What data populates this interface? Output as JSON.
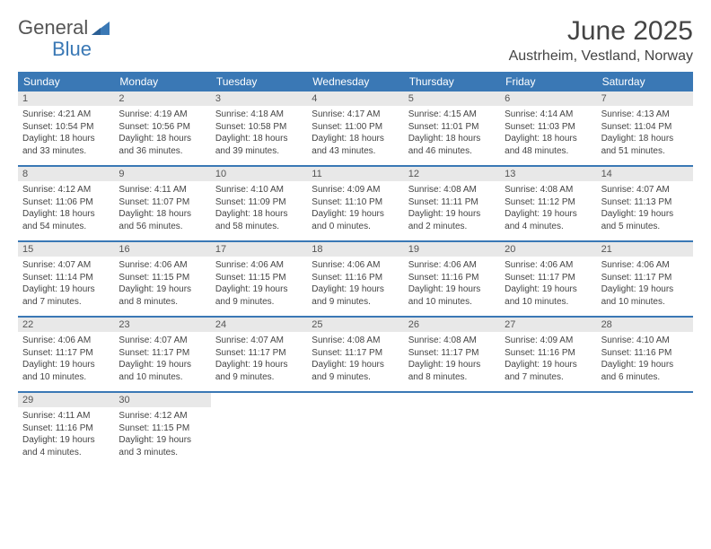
{
  "brand": {
    "part1": "General",
    "part2": "Blue"
  },
  "header": {
    "month_title": "June 2025",
    "location": "Austrheim, Vestland, Norway"
  },
  "style": {
    "accent_color": "#3a78b5",
    "daynum_bg": "#e8e8e8",
    "text_color": "#444444",
    "background": "#ffffff",
    "title_fontsize": 30,
    "location_fontsize": 16,
    "weekday_fontsize": 12,
    "body_fontsize": 10
  },
  "calendar": {
    "type": "table",
    "columns": [
      "Sunday",
      "Monday",
      "Tuesday",
      "Wednesday",
      "Thursday",
      "Friday",
      "Saturday"
    ],
    "weeks": [
      [
        {
          "n": "1",
          "sr": "Sunrise: 4:21 AM",
          "ss": "Sunset: 10:54 PM",
          "d1": "Daylight: 18 hours",
          "d2": "and 33 minutes."
        },
        {
          "n": "2",
          "sr": "Sunrise: 4:19 AM",
          "ss": "Sunset: 10:56 PM",
          "d1": "Daylight: 18 hours",
          "d2": "and 36 minutes."
        },
        {
          "n": "3",
          "sr": "Sunrise: 4:18 AM",
          "ss": "Sunset: 10:58 PM",
          "d1": "Daylight: 18 hours",
          "d2": "and 39 minutes."
        },
        {
          "n": "4",
          "sr": "Sunrise: 4:17 AM",
          "ss": "Sunset: 11:00 PM",
          "d1": "Daylight: 18 hours",
          "d2": "and 43 minutes."
        },
        {
          "n": "5",
          "sr": "Sunrise: 4:15 AM",
          "ss": "Sunset: 11:01 PM",
          "d1": "Daylight: 18 hours",
          "d2": "and 46 minutes."
        },
        {
          "n": "6",
          "sr": "Sunrise: 4:14 AM",
          "ss": "Sunset: 11:03 PM",
          "d1": "Daylight: 18 hours",
          "d2": "and 48 minutes."
        },
        {
          "n": "7",
          "sr": "Sunrise: 4:13 AM",
          "ss": "Sunset: 11:04 PM",
          "d1": "Daylight: 18 hours",
          "d2": "and 51 minutes."
        }
      ],
      [
        {
          "n": "8",
          "sr": "Sunrise: 4:12 AM",
          "ss": "Sunset: 11:06 PM",
          "d1": "Daylight: 18 hours",
          "d2": "and 54 minutes."
        },
        {
          "n": "9",
          "sr": "Sunrise: 4:11 AM",
          "ss": "Sunset: 11:07 PM",
          "d1": "Daylight: 18 hours",
          "d2": "and 56 minutes."
        },
        {
          "n": "10",
          "sr": "Sunrise: 4:10 AM",
          "ss": "Sunset: 11:09 PM",
          "d1": "Daylight: 18 hours",
          "d2": "and 58 minutes."
        },
        {
          "n": "11",
          "sr": "Sunrise: 4:09 AM",
          "ss": "Sunset: 11:10 PM",
          "d1": "Daylight: 19 hours",
          "d2": "and 0 minutes."
        },
        {
          "n": "12",
          "sr": "Sunrise: 4:08 AM",
          "ss": "Sunset: 11:11 PM",
          "d1": "Daylight: 19 hours",
          "d2": "and 2 minutes."
        },
        {
          "n": "13",
          "sr": "Sunrise: 4:08 AM",
          "ss": "Sunset: 11:12 PM",
          "d1": "Daylight: 19 hours",
          "d2": "and 4 minutes."
        },
        {
          "n": "14",
          "sr": "Sunrise: 4:07 AM",
          "ss": "Sunset: 11:13 PM",
          "d1": "Daylight: 19 hours",
          "d2": "and 5 minutes."
        }
      ],
      [
        {
          "n": "15",
          "sr": "Sunrise: 4:07 AM",
          "ss": "Sunset: 11:14 PM",
          "d1": "Daylight: 19 hours",
          "d2": "and 7 minutes."
        },
        {
          "n": "16",
          "sr": "Sunrise: 4:06 AM",
          "ss": "Sunset: 11:15 PM",
          "d1": "Daylight: 19 hours",
          "d2": "and 8 minutes."
        },
        {
          "n": "17",
          "sr": "Sunrise: 4:06 AM",
          "ss": "Sunset: 11:15 PM",
          "d1": "Daylight: 19 hours",
          "d2": "and 9 minutes."
        },
        {
          "n": "18",
          "sr": "Sunrise: 4:06 AM",
          "ss": "Sunset: 11:16 PM",
          "d1": "Daylight: 19 hours",
          "d2": "and 9 minutes."
        },
        {
          "n": "19",
          "sr": "Sunrise: 4:06 AM",
          "ss": "Sunset: 11:16 PM",
          "d1": "Daylight: 19 hours",
          "d2": "and 10 minutes."
        },
        {
          "n": "20",
          "sr": "Sunrise: 4:06 AM",
          "ss": "Sunset: 11:17 PM",
          "d1": "Daylight: 19 hours",
          "d2": "and 10 minutes."
        },
        {
          "n": "21",
          "sr": "Sunrise: 4:06 AM",
          "ss": "Sunset: 11:17 PM",
          "d1": "Daylight: 19 hours",
          "d2": "and 10 minutes."
        }
      ],
      [
        {
          "n": "22",
          "sr": "Sunrise: 4:06 AM",
          "ss": "Sunset: 11:17 PM",
          "d1": "Daylight: 19 hours",
          "d2": "and 10 minutes."
        },
        {
          "n": "23",
          "sr": "Sunrise: 4:07 AM",
          "ss": "Sunset: 11:17 PM",
          "d1": "Daylight: 19 hours",
          "d2": "and 10 minutes."
        },
        {
          "n": "24",
          "sr": "Sunrise: 4:07 AM",
          "ss": "Sunset: 11:17 PM",
          "d1": "Daylight: 19 hours",
          "d2": "and 9 minutes."
        },
        {
          "n": "25",
          "sr": "Sunrise: 4:08 AM",
          "ss": "Sunset: 11:17 PM",
          "d1": "Daylight: 19 hours",
          "d2": "and 9 minutes."
        },
        {
          "n": "26",
          "sr": "Sunrise: 4:08 AM",
          "ss": "Sunset: 11:17 PM",
          "d1": "Daylight: 19 hours",
          "d2": "and 8 minutes."
        },
        {
          "n": "27",
          "sr": "Sunrise: 4:09 AM",
          "ss": "Sunset: 11:16 PM",
          "d1": "Daylight: 19 hours",
          "d2": "and 7 minutes."
        },
        {
          "n": "28",
          "sr": "Sunrise: 4:10 AM",
          "ss": "Sunset: 11:16 PM",
          "d1": "Daylight: 19 hours",
          "d2": "and 6 minutes."
        }
      ],
      [
        {
          "n": "29",
          "sr": "Sunrise: 4:11 AM",
          "ss": "Sunset: 11:16 PM",
          "d1": "Daylight: 19 hours",
          "d2": "and 4 minutes."
        },
        {
          "n": "30",
          "sr": "Sunrise: 4:12 AM",
          "ss": "Sunset: 11:15 PM",
          "d1": "Daylight: 19 hours",
          "d2": "and 3 minutes."
        },
        null,
        null,
        null,
        null,
        null
      ]
    ]
  }
}
